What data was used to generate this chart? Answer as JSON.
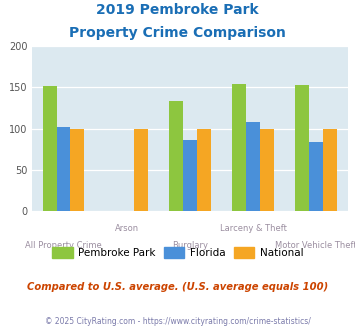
{
  "title_line1": "2019 Pembroke Park",
  "title_line2": "Property Crime Comparison",
  "categories": [
    "All Property Crime",
    "Arson",
    "Burglary",
    "Larceny & Theft",
    "Motor Vehicle Theft"
  ],
  "pembroke_park": [
    152,
    0,
    133,
    154,
    153
  ],
  "florida": [
    102,
    0,
    86,
    108,
    84
  ],
  "national": [
    100,
    100,
    100,
    100,
    100
  ],
  "colors": {
    "pembroke_park": "#8dc63f",
    "florida": "#4a90d9",
    "national": "#f5a623"
  },
  "ylim": [
    0,
    200
  ],
  "yticks": [
    0,
    50,
    100,
    150,
    200
  ],
  "plot_bg": "#dce9f0",
  "subtitle": "Compared to U.S. average. (U.S. average equals 100)",
  "footnote": "© 2025 CityRating.com - https://www.cityrating.com/crime-statistics/",
  "title_color": "#1a6eb5",
  "category_color": "#9b8ea0",
  "subtitle_color": "#cc4400",
  "footnote_color": "#7a7aaa",
  "legend_labels": [
    "Pembroke Park",
    "Florida",
    "National"
  ],
  "bar_width": 0.22
}
